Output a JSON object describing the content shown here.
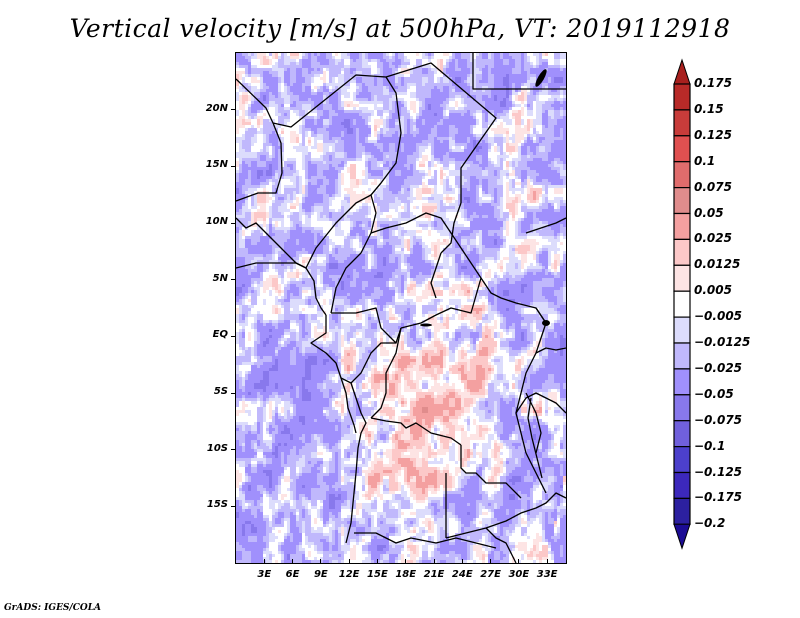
{
  "chart_data": {
    "type": "heatmap",
    "title": "Vertical velocity [m/s] at 500hPa, VT: 2019112918",
    "variable": "Vertical velocity",
    "units": "m/s",
    "level": "500hPa",
    "valid_time": "2019112918",
    "xlabel": "",
    "ylabel": "",
    "lon_range": [
      0,
      35
    ],
    "lat_range": [
      -20,
      25
    ],
    "x_ticks": [
      {
        "value": 3,
        "label": "3E"
      },
      {
        "value": 6,
        "label": "6E"
      },
      {
        "value": 9,
        "label": "9E"
      },
      {
        "value": 12,
        "label": "12E"
      },
      {
        "value": 15,
        "label": "15E"
      },
      {
        "value": 18,
        "label": "18E"
      },
      {
        "value": 21,
        "label": "21E"
      },
      {
        "value": 24,
        "label": "24E"
      },
      {
        "value": 27,
        "label": "27E"
      },
      {
        "value": 30,
        "label": "30E"
      },
      {
        "value": 33,
        "label": "33E"
      }
    ],
    "y_ticks": [
      {
        "value": 20,
        "label": "20N"
      },
      {
        "value": 15,
        "label": "15N"
      },
      {
        "value": 10,
        "label": "10N"
      },
      {
        "value": 5,
        "label": "5N"
      },
      {
        "value": 0,
        "label": "EQ"
      },
      {
        "value": -5,
        "label": "5S"
      },
      {
        "value": -10,
        "label": "10S"
      },
      {
        "value": -15,
        "label": "15S"
      }
    ],
    "colorbar": {
      "orientation": "vertical",
      "placement": "right",
      "extend": "both",
      "levels": [
        {
          "label": "0.175",
          "value": 0.175
        },
        {
          "label": "0.15",
          "value": 0.15
        },
        {
          "label": "0.125",
          "value": 0.125
        },
        {
          "label": "0.1",
          "value": 0.1
        },
        {
          "label": "0.075",
          "value": 0.075
        },
        {
          "label": "0.05",
          "value": 0.05
        },
        {
          "label": "0.025",
          "value": 0.025
        },
        {
          "label": "0.0125",
          "value": 0.0125
        },
        {
          "label": "0.005",
          "value": 0.005
        },
        {
          "label": "−0.005",
          "value": -0.005
        },
        {
          "label": "−0.0125",
          "value": -0.0125
        },
        {
          "label": "−0.025",
          "value": -0.025
        },
        {
          "label": "−0.05",
          "value": -0.05
        },
        {
          "label": "−0.075",
          "value": -0.075
        },
        {
          "label": "−0.1",
          "value": -0.1
        },
        {
          "label": "−0.125",
          "value": -0.125
        },
        {
          "label": "−0.175",
          "value": -0.175
        },
        {
          "label": "−0.2",
          "value": -0.2
        }
      ],
      "colors_top_to_bottom": [
        "#a8201e",
        "#b82a28",
        "#c83c3a",
        "#e05050",
        "#e06c6c",
        "#e08c8c",
        "#f4a0a0",
        "#fcc8c8",
        "#fde4e4",
        "#ffffff",
        "#dcdcfc",
        "#c0b8fc",
        "#a090fc",
        "#8878ec",
        "#7060dc",
        "#4c40cc",
        "#3c28bc",
        "#2c20a0",
        "#1c0c94"
      ]
    },
    "pattern_summary": "Predominantly weak negative (blue) values over the Sahara/north and the southeast Atlantic; positive (red) values over central Africa (Congo basin, Angola, Zambia), with small strong cores of both signs."
  },
  "footer": {
    "credit": "GrADS: IGES/COLA"
  }
}
